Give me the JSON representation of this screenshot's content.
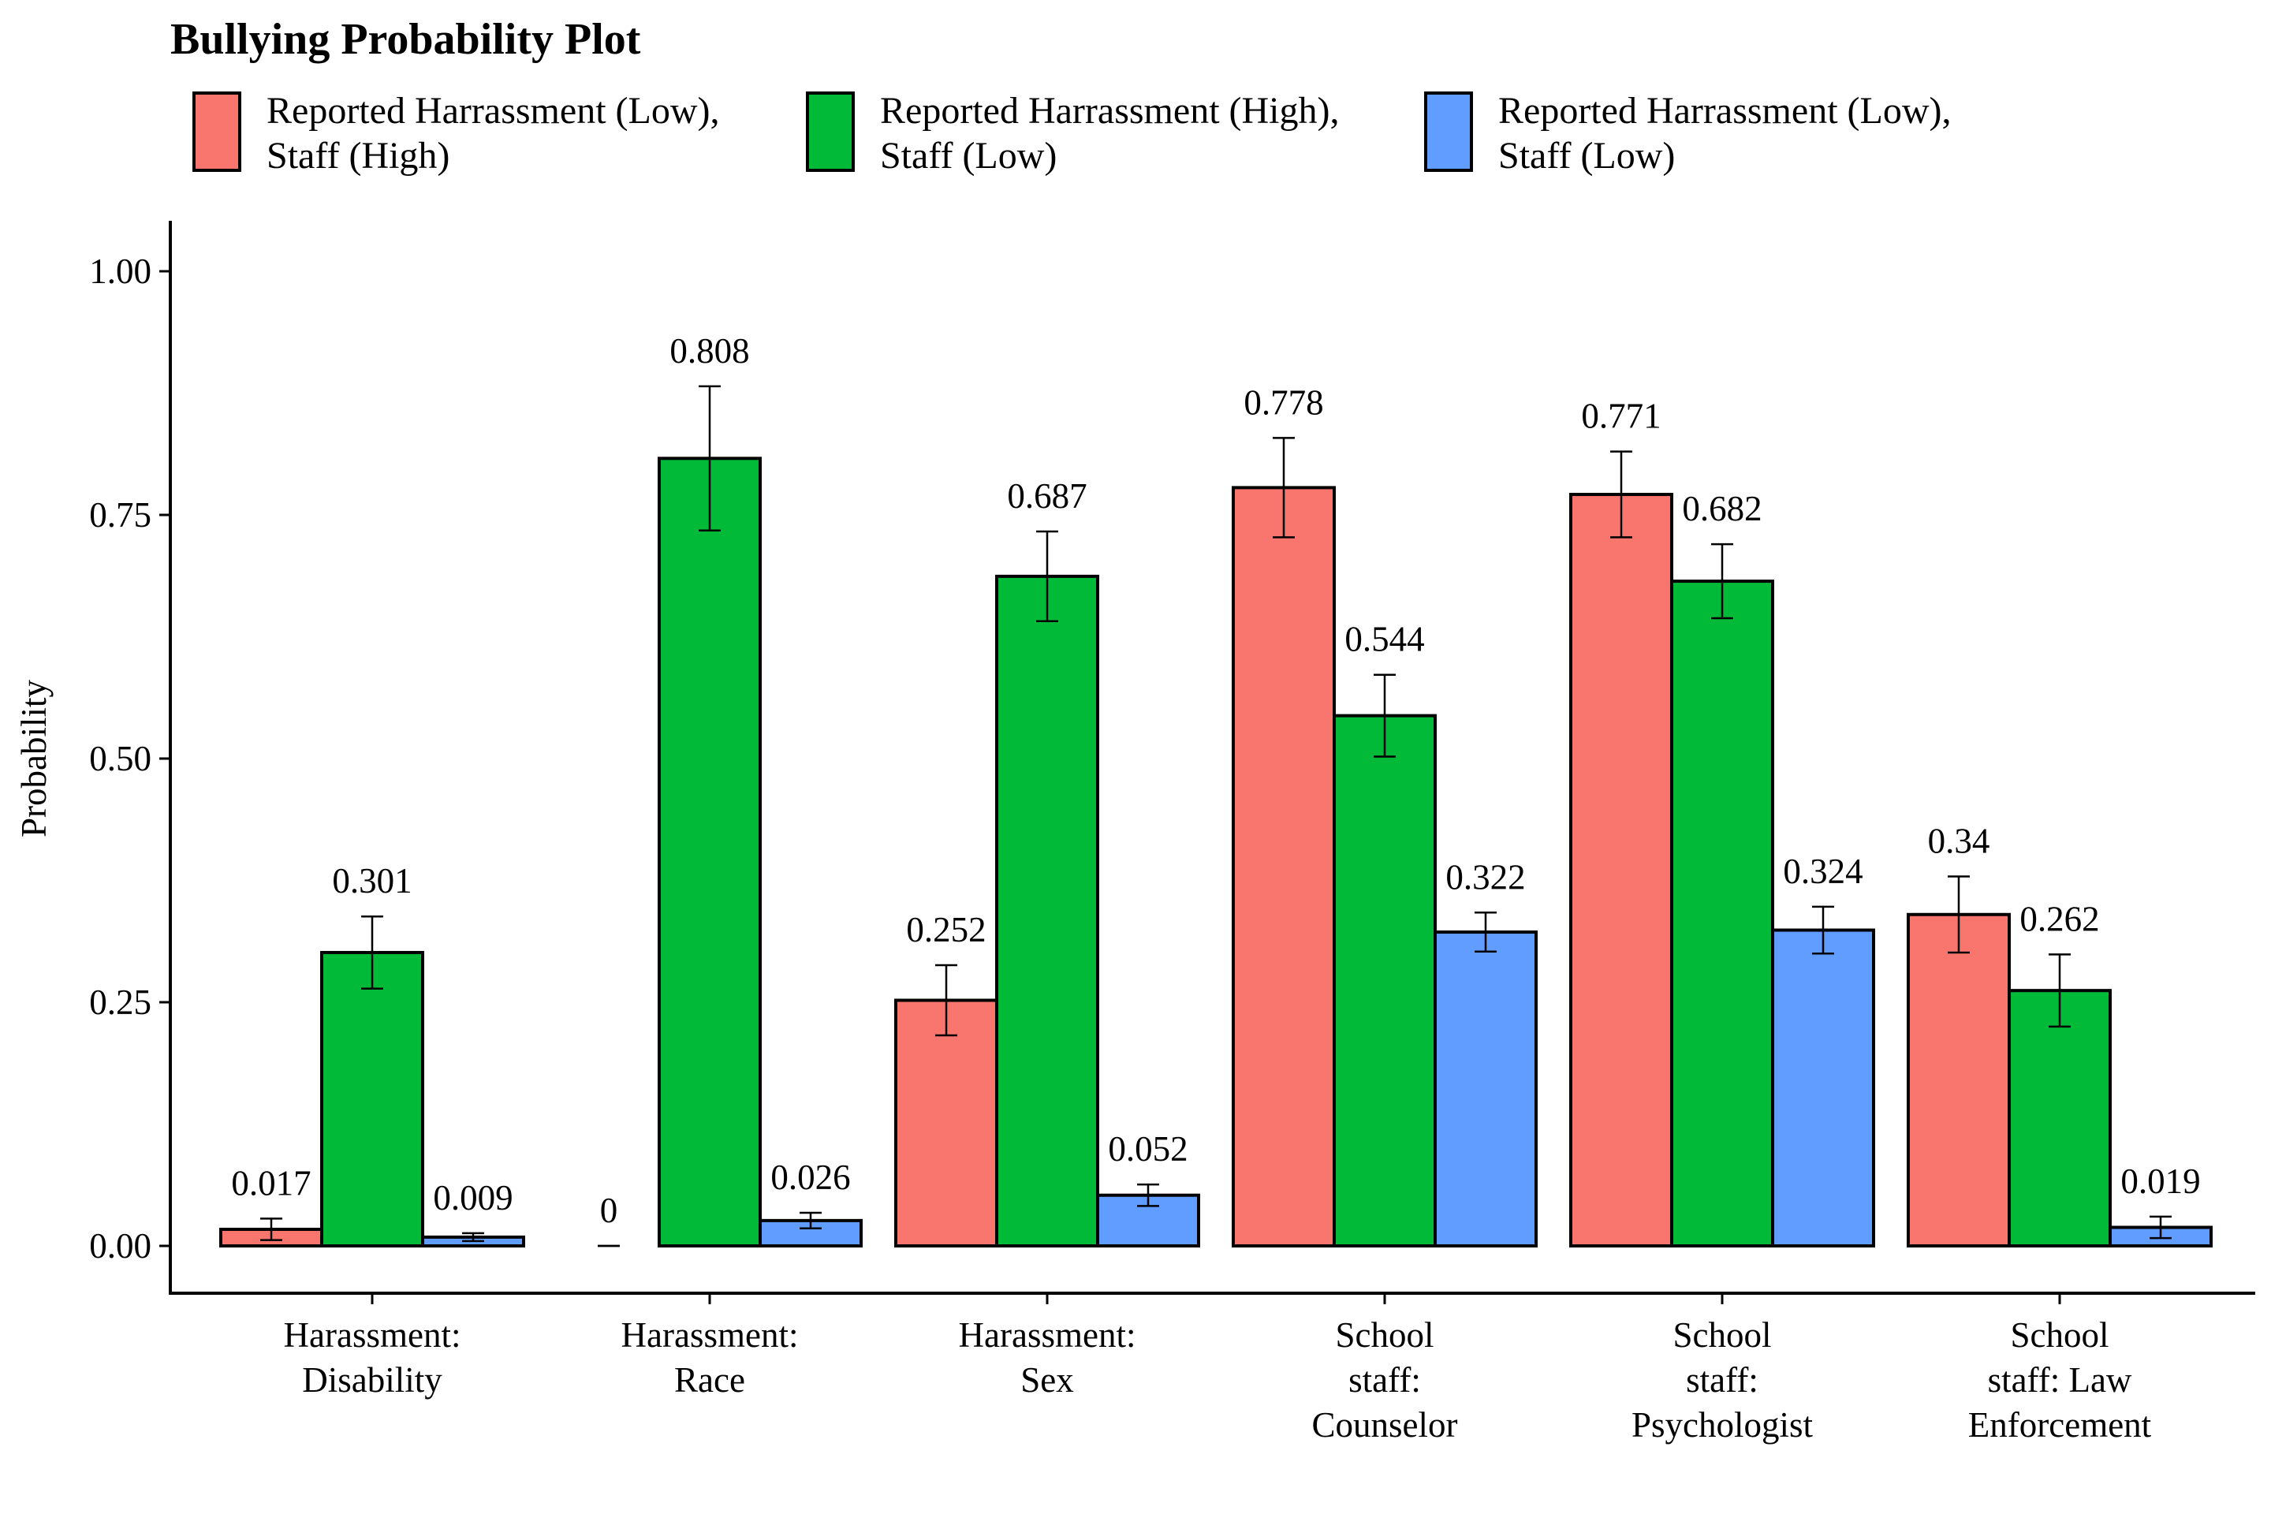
{
  "chart_data": {
    "type": "bar",
    "title": "Bullying Probability Plot",
    "ylabel": "Probability",
    "xlabel": "",
    "ylim": [
      0,
      1
    ],
    "yticks": [
      "0.00",
      "0.25",
      "0.50",
      "0.75",
      "1.00"
    ],
    "ytick_values": [
      0,
      0.25,
      0.5,
      0.75,
      1.0
    ],
    "grid": false,
    "legend_position": "top",
    "categories": [
      [
        "Harassment:",
        "Disability"
      ],
      [
        "Harassment:",
        "Race"
      ],
      [
        "Harassment:",
        "Sex"
      ],
      [
        "School",
        "staff:",
        "Counselor"
      ],
      [
        "School",
        "staff:",
        "Psychologist"
      ],
      [
        "School",
        "staff: Law",
        "Enforcement"
      ]
    ],
    "series": [
      {
        "name": [
          "Reported Harrassment (Low),",
          "Staff (High)"
        ],
        "color": "#F8766D",
        "values": [
          0.017,
          0,
          0.252,
          0.778,
          0.771,
          0.34
        ],
        "labels": [
          "0.017",
          "0",
          "0.252",
          "0.778",
          "0.771",
          "0.34"
        ],
        "error": [
          [
            0.006,
            0.028
          ],
          [
            0,
            0
          ],
          [
            0.216,
            0.288
          ],
          [
            0.727,
            0.829
          ],
          [
            0.727,
            0.815
          ],
          [
            0.301,
            0.379
          ]
        ]
      },
      {
        "name": [
          "Reported Harrassment (High),",
          "Staff (Low)"
        ],
        "color": "#00BA38",
        "values": [
          0.301,
          0.808,
          0.687,
          0.544,
          0.682,
          0.262
        ],
        "labels": [
          "0.301",
          "0.808",
          "0.687",
          "0.544",
          "0.682",
          "0.262"
        ],
        "error": [
          [
            0.264,
            0.338
          ],
          [
            0.734,
            0.882
          ],
          [
            0.641,
            0.733
          ],
          [
            0.502,
            0.586
          ],
          [
            0.644,
            0.72
          ],
          [
            0.225,
            0.299
          ]
        ]
      },
      {
        "name": [
          "Reported Harrassment (Low),",
          "Staff (Low)"
        ],
        "color": "#619CFF",
        "values": [
          0.009,
          0.026,
          0.052,
          0.322,
          0.324,
          0.019
        ],
        "labels": [
          "0.009",
          "0.026",
          "0.052",
          "0.322",
          "0.324",
          "0.019"
        ],
        "error": [
          [
            0.005,
            0.013
          ],
          [
            0.018,
            0.034
          ],
          [
            0.041,
            0.063
          ],
          [
            0.302,
            0.342
          ],
          [
            0.3,
            0.348
          ],
          [
            0.008,
            0.03
          ]
        ]
      }
    ]
  }
}
